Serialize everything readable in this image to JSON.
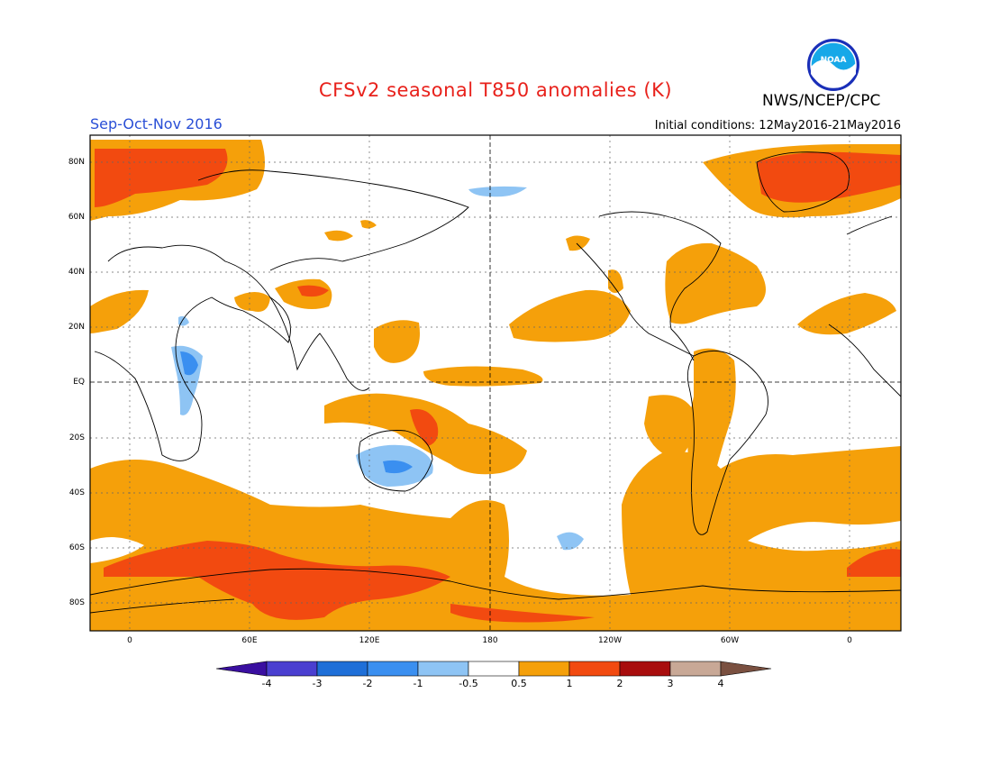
{
  "title": "CFSv2 seasonal T850 anomalies (K)",
  "agency": "NWS/NCEP/CPC",
  "logo_text": "NOAA",
  "season": "Sep-Oct-Nov 2016",
  "initial_conditions": "Initial conditions: 12May2016-21May2016",
  "lat_labels": [
    "80N",
    "60N",
    "40N",
    "20N",
    "EQ",
    "20S",
    "40S",
    "60S",
    "80S"
  ],
  "lon_labels": [
    "0",
    "60E",
    "120E",
    "180",
    "120W",
    "60W",
    "0"
  ],
  "colorbar": {
    "labels": [
      "-4",
      "-3",
      "-2",
      "-1",
      "-0.5",
      "0.5",
      "1",
      "2",
      "3",
      "4"
    ],
    "colors": [
      "#3a0fa0",
      "#4a3fd0",
      "#1e6fd8",
      "#3a8ff0",
      "#8ec4f4",
      "#ffffff",
      "#f5a00a",
      "#f24a10",
      "#a80d0d",
      "#c8a896",
      "#7a5040"
    ]
  },
  "colors": {
    "warm_05_1": "#f5a00a",
    "warm_1_2": "#f24a10",
    "cool_05_1": "#8ec4f4",
    "cool_1_2": "#3a8ff0"
  }
}
